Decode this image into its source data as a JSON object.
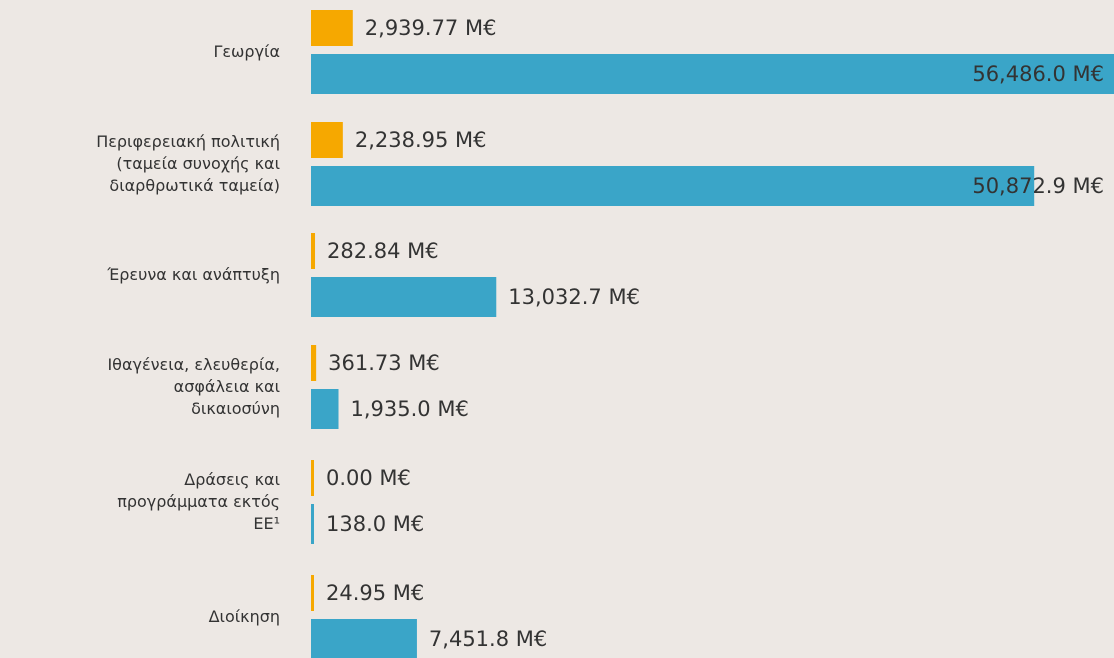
{
  "chart_data": {
    "type": "bar",
    "orientation": "horizontal",
    "categories": [
      "Γεωργία",
      "Περιφερειακή πολιτική\n(ταμεία συνοχής και\nδιαρθρωτικά ταμεία)",
      "Έρευνα και ανάπτυξη",
      "Ιθαγένεια, ελευθερία,\nασφάλεια και\nδικαιοσύνη",
      "Δράσεις και\nπρογράμματα εκτός\nΕΕ¹",
      "Διοίκηση"
    ],
    "series": [
      {
        "color": "#f6a800",
        "values": [
          2939.77,
          2238.95,
          282.84,
          361.73,
          0.0,
          24.95
        ],
        "value_labels": [
          "2,939.77 M€",
          "2,238.95 M€",
          "282.84 M€",
          "361.73 M€",
          "0.00 M€",
          "24.95 M€"
        ]
      },
      {
        "color": "#3aa5c8",
        "values": [
          56486.0,
          50872.9,
          13032.7,
          1935.0,
          138.0,
          7451.8
        ],
        "value_labels": [
          "56,486.0 M€",
          "50,872.9 M€",
          "13,032.7 M€",
          "1,935.0 M€",
          "138.0 M€",
          "7,451.8 M€"
        ]
      }
    ]
  }
}
